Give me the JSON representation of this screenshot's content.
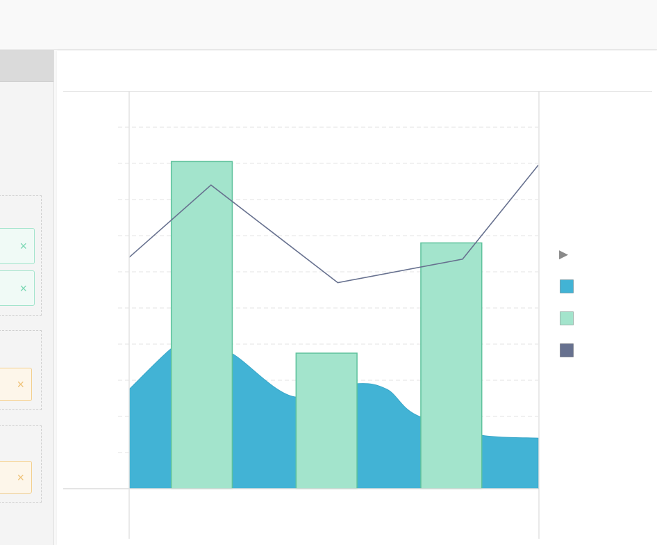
{
  "filter_chips": [
    {
      "color": "green",
      "close_icon": "×"
    },
    {
      "color": "green",
      "close_icon": "×"
    },
    {
      "color": "orange",
      "close_icon": "×"
    },
    {
      "color": "orange",
      "close_icon": "×"
    }
  ],
  "legend": {
    "toggle_icon": "▶",
    "items": [
      {
        "color": "#42b3d5"
      },
      {
        "color": "#a3e4cc"
      },
      {
        "color": "#67718f"
      }
    ]
  },
  "chart_data": {
    "type": "combo",
    "title": "",
    "xlabel": "",
    "ylabel": "",
    "x_range": [
      0,
      1
    ],
    "ylim": [
      0,
      100
    ],
    "grid": true,
    "legend_position": "right",
    "series": [
      {
        "type": "area",
        "color": "#42b3d5",
        "x": [
          0,
          0.1,
          0.15,
          0.25,
          0.4,
          0.55,
          0.63,
          0.7,
          0.85,
          1
        ],
        "values": [
          27.5,
          38.5,
          41.5,
          37.5,
          25.5,
          29,
          27.5,
          20.5,
          15,
          14
        ]
      },
      {
        "type": "bar",
        "color": "#a3e4cc",
        "x": [
          0.1775,
          0.4825,
          0.7875
        ],
        "width": 0.149,
        "values": [
          90.5,
          37.5,
          68
        ]
      },
      {
        "type": "line",
        "color": "#67718f",
        "x": [
          0,
          0.2,
          0.51,
          0.815,
          1
        ],
        "values": [
          64,
          84,
          57,
          63.5,
          89.5
        ]
      }
    ]
  }
}
